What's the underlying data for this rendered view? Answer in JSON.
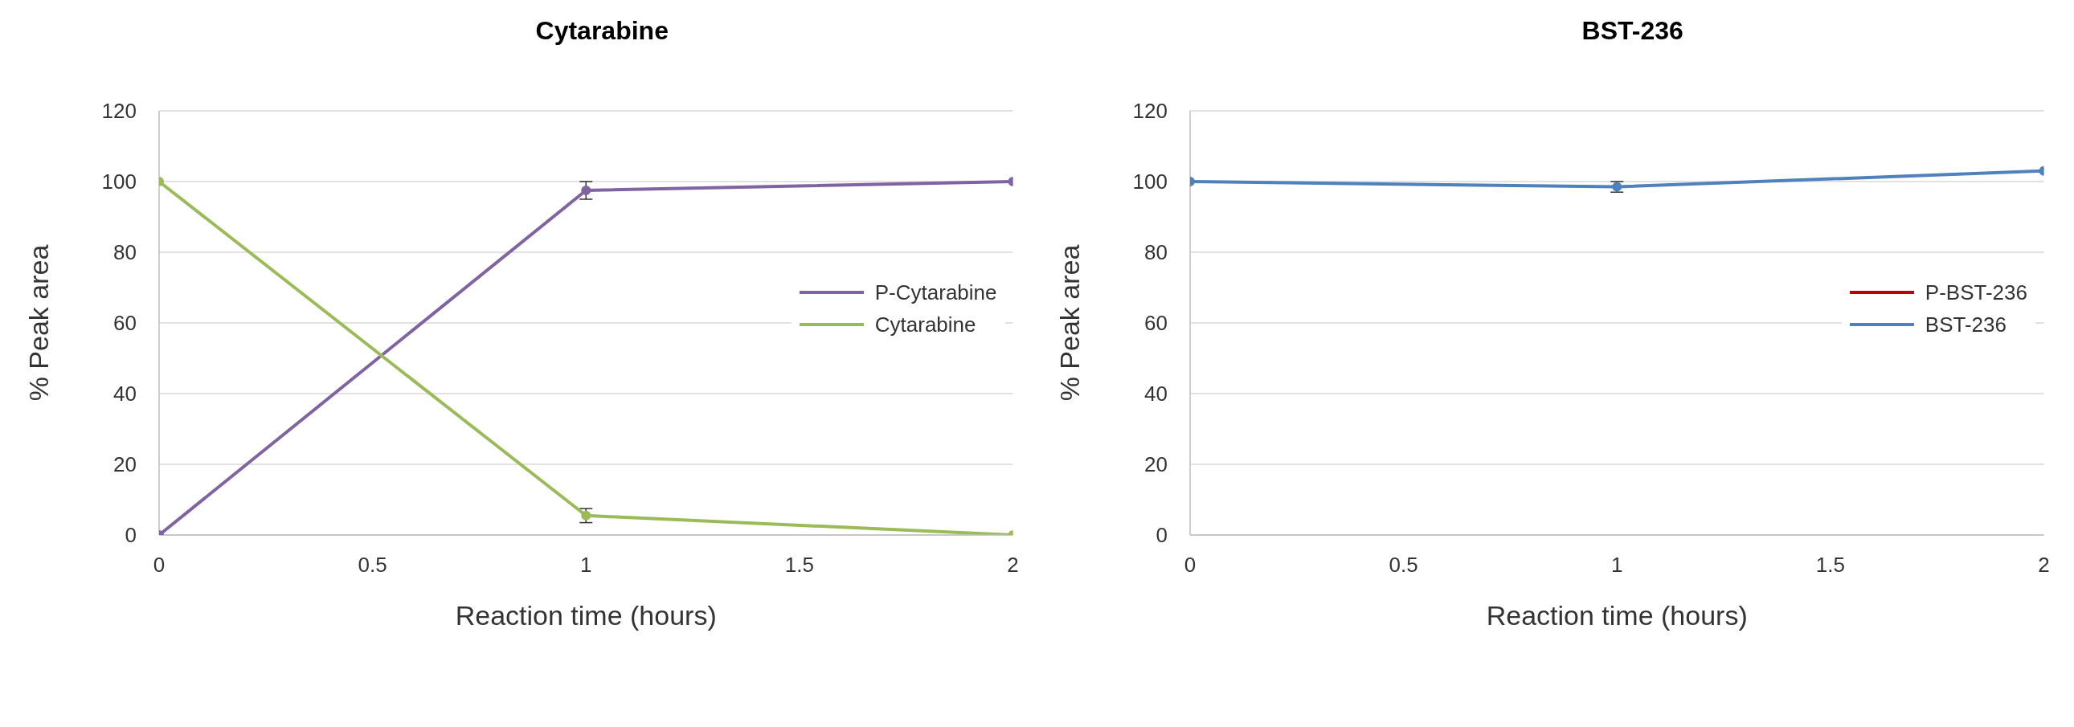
{
  "chart_data": [
    {
      "type": "line",
      "title": "Cytarabine",
      "xlabel": "Reaction time (hours)",
      "ylabel": "% Peak area",
      "x": [
        0,
        1,
        2
      ],
      "series": [
        {
          "name": "P-Cytarabine",
          "color": "#8064a2",
          "values": [
            0,
            97.5,
            100
          ],
          "errors": [
            null,
            2.5,
            null
          ]
        },
        {
          "name": "Cytarabine",
          "color": "#9bbb59",
          "values": [
            100,
            5.5,
            0
          ],
          "errors": [
            null,
            2,
            null
          ]
        }
      ],
      "xlim": [
        0,
        2
      ],
      "xticks": [
        0,
        0.5,
        1,
        1.5,
        2
      ],
      "ylim": [
        0,
        120
      ],
      "yticks": [
        0,
        20,
        40,
        60,
        80,
        100,
        120
      ],
      "grid": "y",
      "legend": "right",
      "marker": "circle",
      "line_style": "solid"
    },
    {
      "type": "line",
      "title": "BST-236",
      "xlabel": "Reaction time (hours)",
      "ylabel": "% Peak area",
      "x": [
        0,
        1,
        2
      ],
      "series": [
        {
          "name": "P-BST-236",
          "color": "#c00000",
          "values": [
            null,
            null,
            null
          ]
        },
        {
          "name": "BST-236",
          "color": "#4f81bd",
          "values": [
            100,
            98.5,
            103
          ],
          "errors": [
            null,
            1.5,
            null
          ]
        }
      ],
      "xlim": [
        0,
        2
      ],
      "xticks": [
        0,
        0.5,
        1,
        1.5,
        2
      ],
      "ylim": [
        0,
        120
      ],
      "yticks": [
        0,
        20,
        40,
        60,
        80,
        100,
        120
      ],
      "grid": "y",
      "legend": "right",
      "marker": "circle",
      "line_style": "solid"
    }
  ]
}
